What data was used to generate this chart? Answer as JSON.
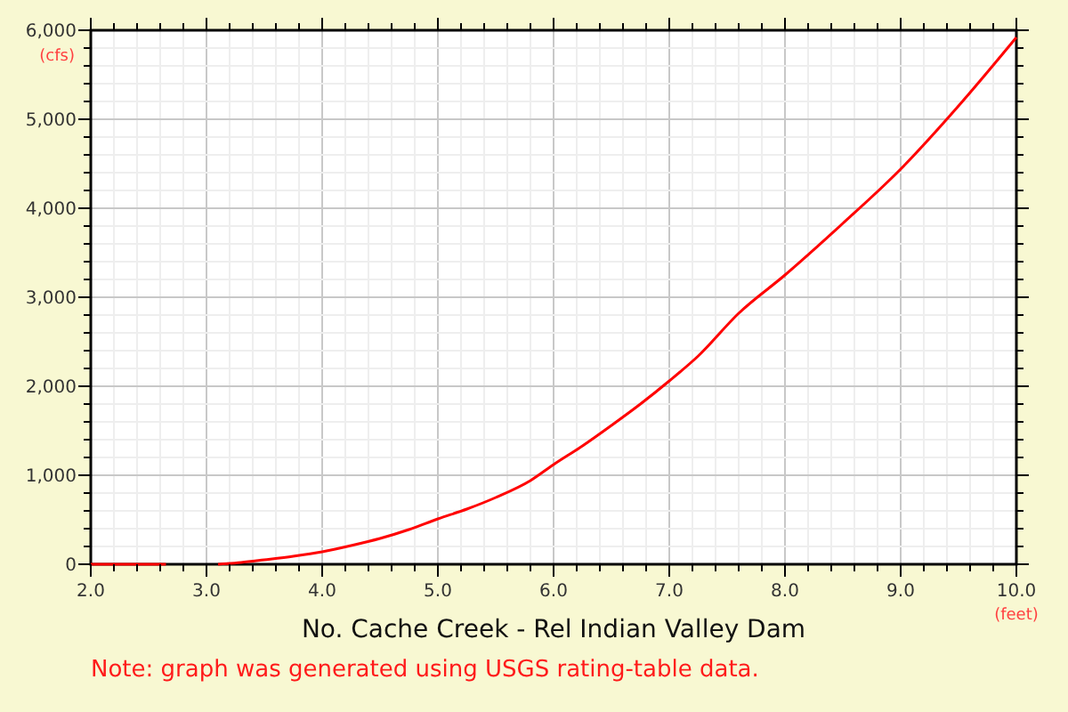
{
  "chart_data": {
    "type": "line",
    "title": "No. Cache Creek - Rel Indian Valley Dam",
    "xlabel": "(feet)",
    "ylabel": "(cfs)",
    "annotations": [
      "Note: graph was generated using USGS rating-table data."
    ],
    "x": [
      2.0,
      2.3,
      2.65,
      2.9,
      3.1,
      3.3,
      3.5,
      3.75,
      4.0,
      4.25,
      4.5,
      4.75,
      5.0,
      5.25,
      5.5,
      5.8,
      6.0,
      6.25,
      6.5,
      6.75,
      7.0,
      7.25,
      7.6,
      8.0,
      8.5,
      9.0,
      9.5,
      10.0
    ],
    "series": [
      {
        "color": "#ff0000",
        "values": [
          0,
          0,
          0,
          null,
          0,
          20,
          50,
          90,
          140,
          210,
          290,
          390,
          510,
          620,
          750,
          940,
          1120,
          1330,
          1560,
          1800,
          2060,
          2340,
          2820,
          3250,
          3830,
          4440,
          5150,
          5920
        ]
      }
    ],
    "xlim": [
      2,
      10
    ],
    "ylim": [
      0,
      6000
    ],
    "xticks": [
      {
        "value": 2,
        "label": "2.0"
      },
      {
        "value": 2.2,
        "label": null
      },
      {
        "value": 2.4,
        "label": null
      },
      {
        "value": 2.6,
        "label": null
      },
      {
        "value": 2.8,
        "label": null
      },
      {
        "value": 3,
        "label": "3.0"
      },
      {
        "value": 3.2,
        "label": null
      },
      {
        "value": 3.4,
        "label": null
      },
      {
        "value": 3.6,
        "label": null
      },
      {
        "value": 3.8,
        "label": null
      },
      {
        "value": 4,
        "label": "4.0"
      },
      {
        "value": 4.2,
        "label": null
      },
      {
        "value": 4.4,
        "label": null
      },
      {
        "value": 4.6,
        "label": null
      },
      {
        "value": 4.8,
        "label": null
      },
      {
        "value": 5,
        "label": "5.0"
      },
      {
        "value": 5.2,
        "label": null
      },
      {
        "value": 5.4,
        "label": null
      },
      {
        "value": 5.6,
        "label": null
      },
      {
        "value": 5.8,
        "label": null
      },
      {
        "value": 6,
        "label": "6.0"
      },
      {
        "value": 6.2,
        "label": null
      },
      {
        "value": 6.4,
        "label": null
      },
      {
        "value": 6.6,
        "label": null
      },
      {
        "value": 6.8,
        "label": null
      },
      {
        "value": 7,
        "label": "7.0"
      },
      {
        "value": 7.2,
        "label": null
      },
      {
        "value": 7.4,
        "label": null
      },
      {
        "value": 7.6,
        "label": null
      },
      {
        "value": 7.8,
        "label": null
      },
      {
        "value": 8,
        "label": "8.0"
      },
      {
        "value": 8.2,
        "label": null
      },
      {
        "value": 8.4,
        "label": null
      },
      {
        "value": 8.6,
        "label": null
      },
      {
        "value": 8.8,
        "label": null
      },
      {
        "value": 9,
        "label": "9.0"
      },
      {
        "value": 9.2,
        "label": null
      },
      {
        "value": 9.4,
        "label": null
      },
      {
        "value": 9.6,
        "label": null
      },
      {
        "value": 9.8,
        "label": null
      },
      {
        "value": 10,
        "label": "10.0"
      }
    ],
    "yticks": [
      0,
      {
        "value": 200,
        "label": null
      },
      {
        "value": 400,
        "label": null
      },
      {
        "value": 600,
        "label": null
      },
      {
        "value": 800,
        "label": null
      },
      {
        "value": 1000,
        "label": "1,000"
      },
      {
        "value": 1200,
        "label": null
      },
      {
        "value": 1400,
        "label": null
      },
      {
        "value": 1600,
        "label": null
      },
      {
        "value": 1800,
        "label": null
      },
      {
        "value": 2000,
        "label": "2,000"
      },
      {
        "value": 2200,
        "label": null
      },
      {
        "value": 2400,
        "label": null
      },
      {
        "value": 2600,
        "label": null
      },
      {
        "value": 2800,
        "label": null
      },
      {
        "value": 3000,
        "label": "3,000"
      },
      {
        "value": 3200,
        "label": null
      },
      {
        "value": 3400,
        "label": null
      },
      {
        "value": 3600,
        "label": null
      },
      {
        "value": 3800,
        "label": null
      },
      {
        "value": 4000,
        "label": "4,000"
      },
      {
        "value": 4200,
        "label": null
      },
      {
        "value": 4400,
        "label": null
      },
      {
        "value": 4600,
        "label": null
      },
      {
        "value": 4800,
        "label": null
      },
      {
        "value": 5000,
        "label": "5,000"
      },
      {
        "value": 5200,
        "label": null
      },
      {
        "value": 5400,
        "label": null
      },
      {
        "value": 5600,
        "label": null
      },
      {
        "value": 5800,
        "label": null
      },
      {
        "value": 6000,
        "label": "6,000"
      }
    ],
    "grid": true,
    "marker": "none",
    "line_style": "solid"
  }
}
